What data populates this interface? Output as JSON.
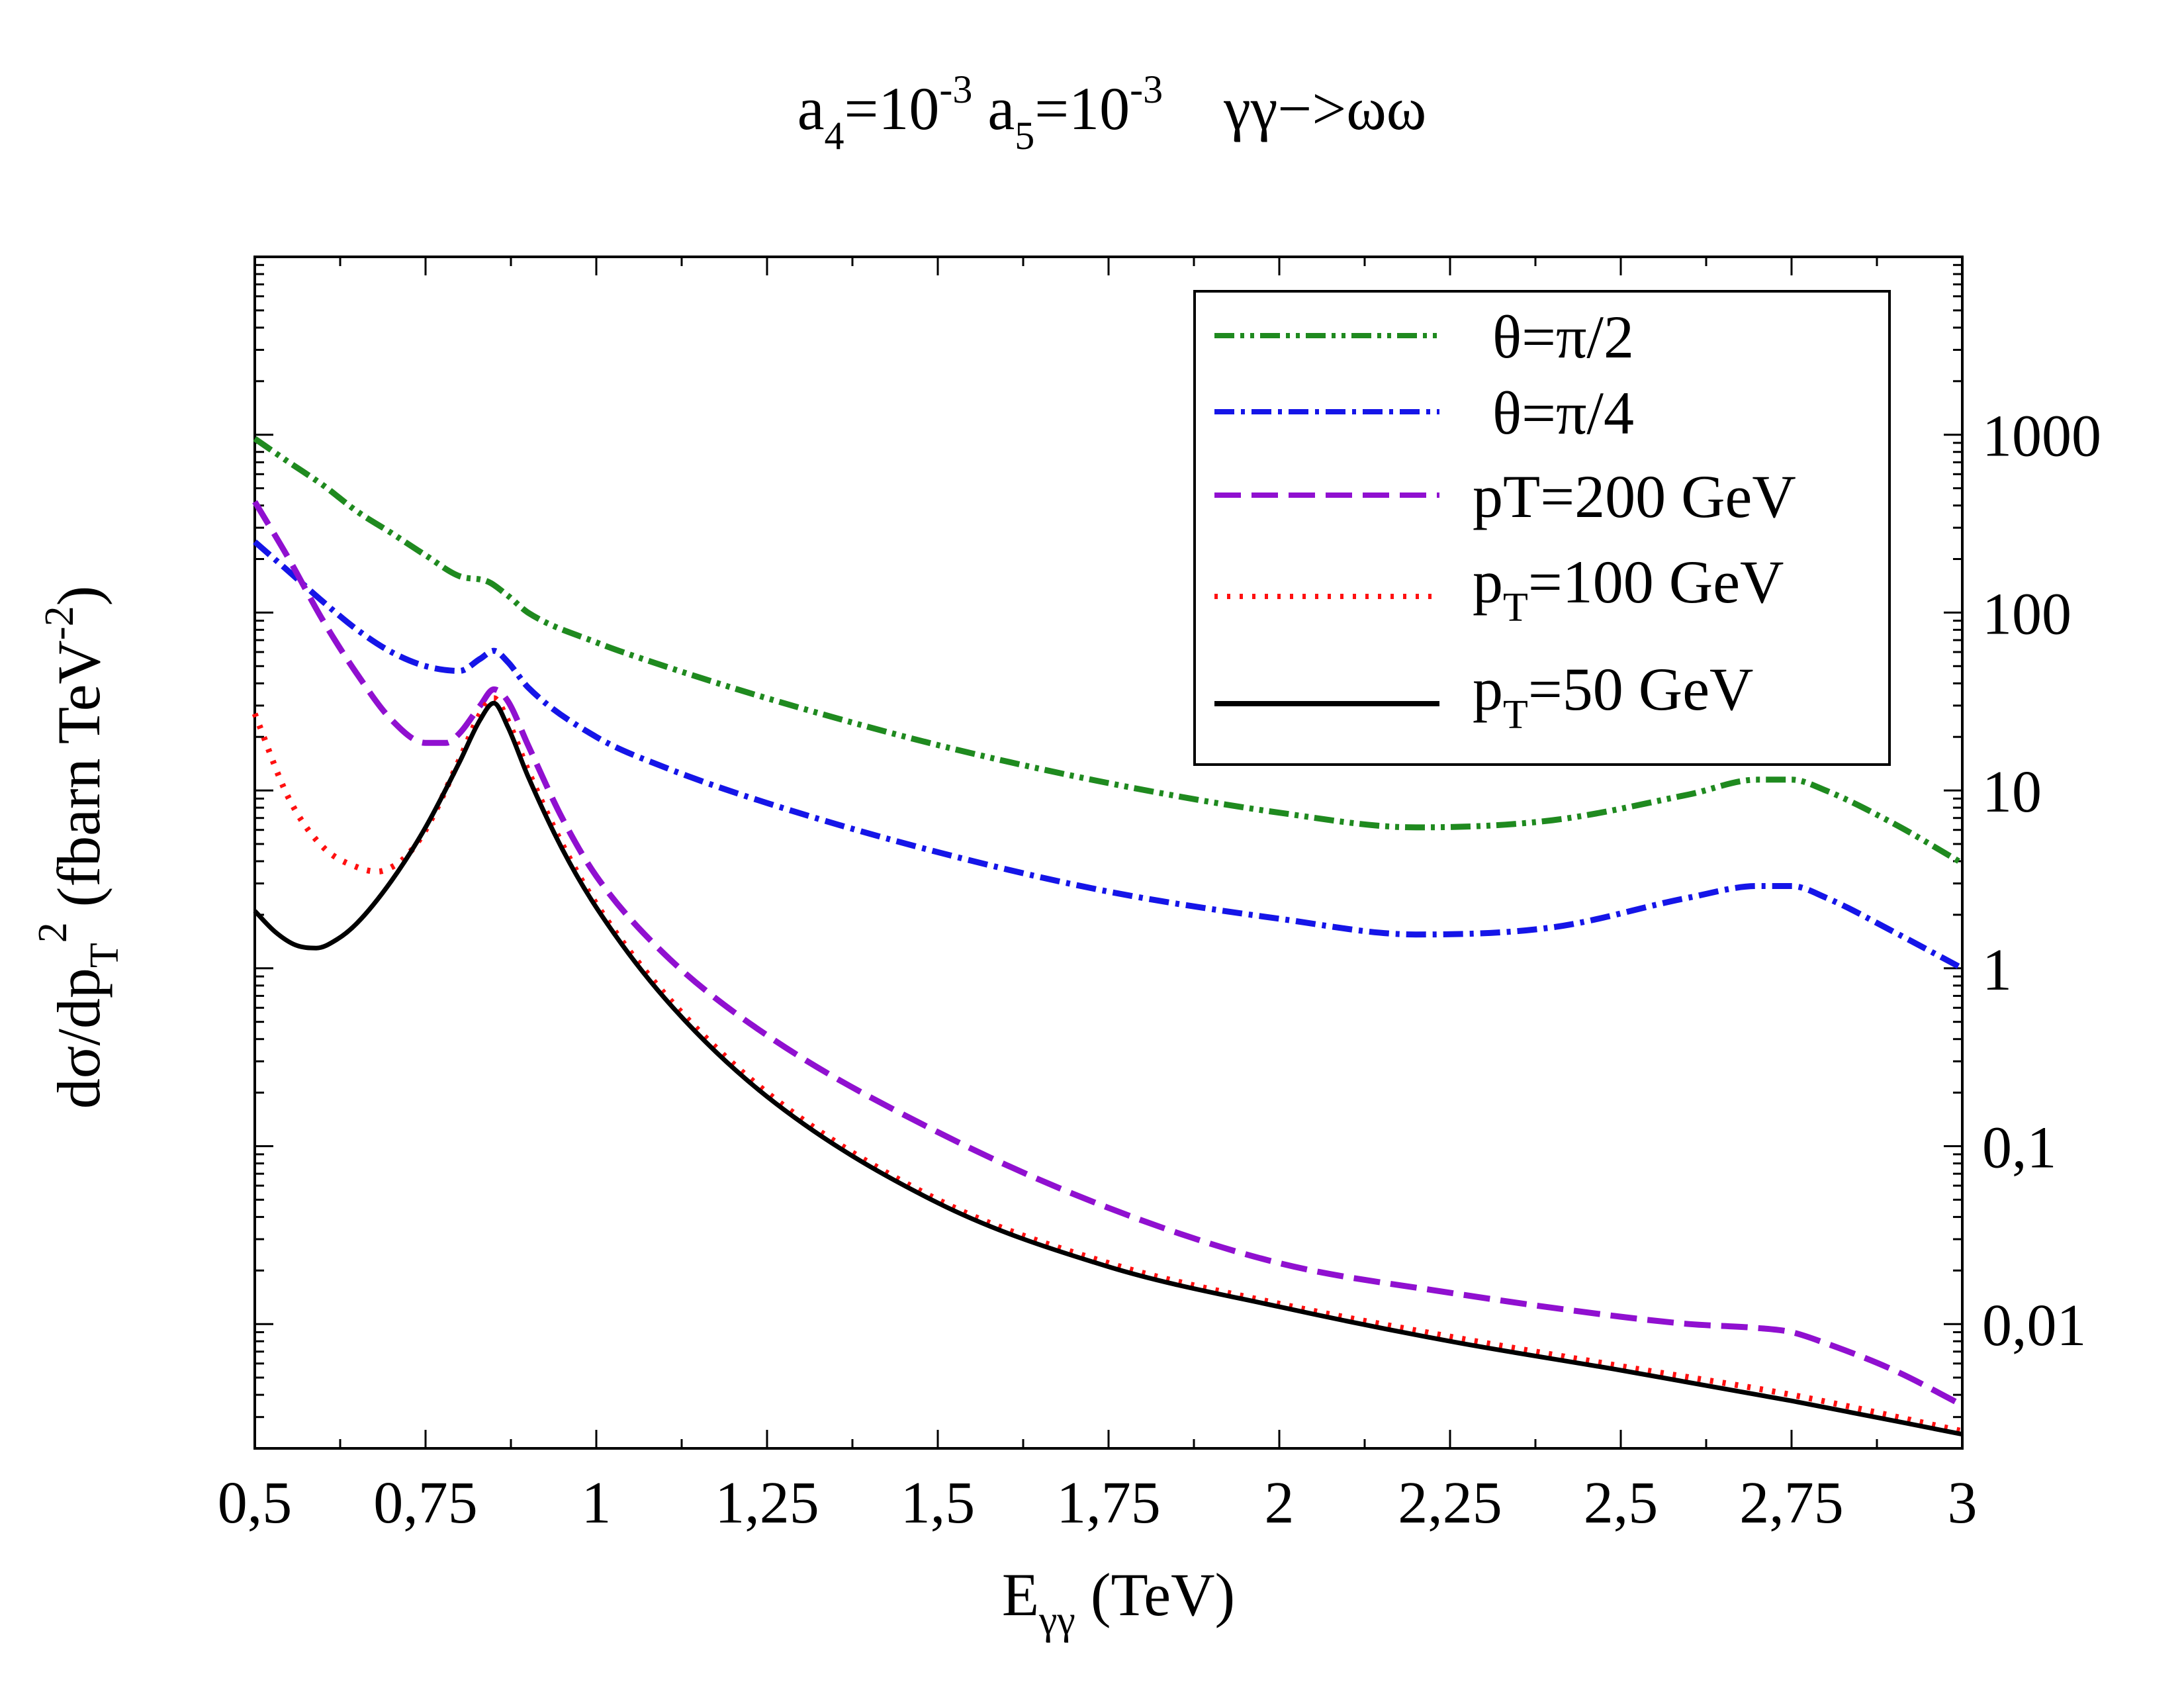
{
  "chart_data": {
    "type": "line",
    "title": {
      "a4_base": "a",
      "a4_sub": "4",
      "a4_eq": "=10",
      "a4_exp": "-3",
      "a5_base": "a",
      "a5_sub": "5",
      "a5_eq": "=10",
      "a5_exp": "-3",
      "process": "γγ−>ωω"
    },
    "xlabel": {
      "main": "E",
      "sub": "γγ",
      "unit": " (TeV)"
    },
    "ylabel": {
      "pre": "dσ/dp",
      "sub": "T",
      "sup": "2",
      "mid": " (fbarn TeV",
      "sup2": "-2",
      "post": ")"
    },
    "xlim": [
      0.5,
      3.0
    ],
    "ylim": [
      0.002,
      10000
    ],
    "yscale": "log",
    "y_axis_side": "right",
    "x_ticks": [
      {
        "value": 0.5,
        "label": "0,5"
      },
      {
        "value": 0.75,
        "label": "0,75"
      },
      {
        "value": 1.0,
        "label": "1"
      },
      {
        "value": 1.25,
        "label": "1,25"
      },
      {
        "value": 1.5,
        "label": "1,5"
      },
      {
        "value": 1.75,
        "label": "1,75"
      },
      {
        "value": 2.0,
        "label": "2"
      },
      {
        "value": 2.25,
        "label": "2,25"
      },
      {
        "value": 2.5,
        "label": "2,5"
      },
      {
        "value": 2.75,
        "label": "2,75"
      },
      {
        "value": 3.0,
        "label": "3"
      }
    ],
    "y_ticks": [
      {
        "value": 1000,
        "label": "1000"
      },
      {
        "value": 100,
        "label": "100"
      },
      {
        "value": 10,
        "label": "10"
      },
      {
        "value": 1,
        "label": "1"
      },
      {
        "value": 0.1,
        "label": "0,1"
      },
      {
        "value": 0.01,
        "label": "0,01"
      }
    ],
    "legend_position": "top-right",
    "series": [
      {
        "key": "theta_pi2",
        "name": "θ=π/2",
        "color": "#1f8a1f",
        "style": "dash-dot-dot",
        "x": [
          0.5,
          0.55,
          0.6,
          0.65,
          0.7,
          0.75,
          0.8,
          0.84,
          0.87,
          0.9,
          1.0,
          1.1,
          1.25,
          1.5,
          1.75,
          2.0,
          2.2,
          2.4,
          2.6,
          2.7,
          2.75,
          2.8,
          2.9,
          3.0
        ],
        "y": [
          950,
          700,
          520,
          370,
          280,
          210,
          160,
          150,
          125,
          100,
          68,
          50,
          33,
          18,
          11,
          7.5,
          6.2,
          6.8,
          9.5,
          11.5,
          11.5,
          10,
          6.5,
          3.9
        ]
      },
      {
        "key": "theta_pi4",
        "name": "θ=π/4",
        "color": "#1515e8",
        "style": "dash-dot",
        "x": [
          0.5,
          0.55,
          0.6,
          0.65,
          0.7,
          0.75,
          0.8,
          0.83,
          0.85,
          0.87,
          0.9,
          1.0,
          1.1,
          1.25,
          1.5,
          1.75,
          2.0,
          2.2,
          2.4,
          2.6,
          2.7,
          2.75,
          2.8,
          2.9,
          3.0
        ],
        "y": [
          250,
          170,
          115,
          80,
          60,
          50,
          47,
          55,
          61,
          53,
          38,
          20,
          13.5,
          8.5,
          4.5,
          2.7,
          1.9,
          1.55,
          1.7,
          2.5,
          2.9,
          2.9,
          2.5,
          1.6,
          1.0
        ]
      },
      {
        "key": "pt200",
        "name": "pT=200 GeV",
        "color": "#9010d0",
        "style": "dash",
        "x": [
          0.5,
          0.55,
          0.6,
          0.65,
          0.7,
          0.75,
          0.78,
          0.8,
          0.83,
          0.85,
          0.87,
          0.9,
          0.95,
          1.0,
          1.1,
          1.25,
          1.5,
          1.75,
          2.0,
          2.25,
          2.5,
          2.6,
          2.7,
          2.75,
          2.8,
          2.9,
          3.0
        ],
        "y": [
          420,
          200,
          90,
          45,
          25,
          18.5,
          18.5,
          21,
          30,
          37,
          32,
          18,
          7,
          3.3,
          1.2,
          0.42,
          0.12,
          0.045,
          0.022,
          0.015,
          0.011,
          0.01,
          0.0095,
          0.009,
          0.0078,
          0.0055,
          0.0035
        ]
      },
      {
        "key": "pt100",
        "name": "p_T=100 GeV",
        "color": "#ff1010",
        "style": "dot",
        "x": [
          0.5,
          0.55,
          0.6,
          0.65,
          0.68,
          0.7,
          0.72,
          0.75,
          0.8,
          0.83,
          0.85,
          0.87,
          0.9,
          0.95,
          1.0,
          1.1,
          1.25,
          1.5,
          1.75,
          2.0,
          2.25,
          2.5,
          2.75,
          3.0
        ],
        "y": [
          27,
          9,
          4.8,
          3.7,
          3.5,
          3.7,
          4.2,
          6,
          15,
          27,
          33,
          25,
          13,
          5,
          2.3,
          0.72,
          0.2,
          0.05,
          0.022,
          0.013,
          0.0085,
          0.0058,
          0.004,
          0.0025
        ]
      },
      {
        "key": "pt50",
        "name": "p_T=50 GeV",
        "color": "#000000",
        "style": "solid",
        "x": [
          0.5,
          0.53,
          0.56,
          0.59,
          0.62,
          0.65,
          0.7,
          0.75,
          0.8,
          0.83,
          0.85,
          0.87,
          0.9,
          0.95,
          1.0,
          1.1,
          1.25,
          1.5,
          1.75,
          2.0,
          2.25,
          2.5,
          2.75,
          3.0
        ],
        "y": [
          2.1,
          1.6,
          1.35,
          1.3,
          1.45,
          1.8,
          3.1,
          6.2,
          14.5,
          25,
          31,
          23,
          12,
          4.7,
          2.2,
          0.68,
          0.19,
          0.048,
          0.021,
          0.0125,
          0.008,
          0.0055,
          0.0037,
          0.0024
        ]
      }
    ]
  },
  "legend": {
    "theta_pi2": "θ=π/2",
    "theta_pi4": "θ=π/4",
    "pt200": "pT=200 GeV",
    "pt100_base": "p",
    "pt100_sub": "T",
    "pt100_rest": "=100 GeV",
    "pt50_base": "p",
    "pt50_sub": "T",
    "pt50_rest": "=50 GeV"
  }
}
